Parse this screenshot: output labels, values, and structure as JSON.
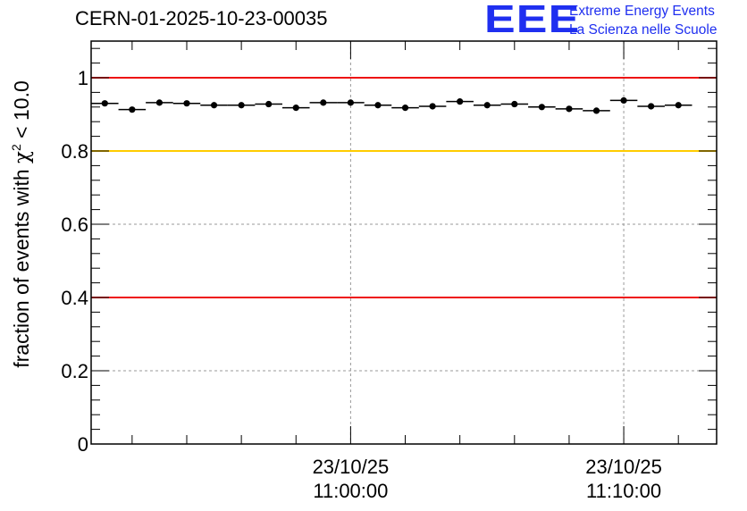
{
  "header": {
    "run_title": "CERN-01-2025-10-23-00035",
    "logo_mark": "EEE",
    "logo_line1": "Extreme Energy Events",
    "logo_line2": "La Scienza nelle Scuole"
  },
  "chart_data": {
    "type": "scatter",
    "title": "CERN-01-2025-10-23-00035",
    "ylabel_main": "fraction of events with ",
    "ylabel_symbol": "χ",
    "ylabel_sup": "2",
    "ylabel_tail": " < 10.0",
    "xlabel": "",
    "xlim_minutes": [
      50.5,
      73.4
    ],
    "ylim": [
      0,
      1.1
    ],
    "y_ticks": [
      {
        "value": 0,
        "label": "0"
      },
      {
        "value": 0.2,
        "label": "0.2"
      },
      {
        "value": 0.4,
        "label": "0.4"
      },
      {
        "value": 0.6,
        "label": "0.6"
      },
      {
        "value": 0.8,
        "label": "0.8"
      },
      {
        "value": 1,
        "label": "1"
      }
    ],
    "x_ticks": [
      {
        "minute": 60,
        "date": "23/10/25",
        "time": "11:00:00"
      },
      {
        "minute": 70,
        "date": "23/10/25",
        "time": "11:10:00"
      }
    ],
    "reference_lines": [
      {
        "y": 1.0,
        "color": "#ee1111"
      },
      {
        "y": 0.8,
        "color": "#ffcc00"
      },
      {
        "y": 0.4,
        "color": "#ee1111"
      }
    ],
    "points": [
      {
        "x": 51.0,
        "y": 0.93
      },
      {
        "x": 52.0,
        "y": 0.913
      },
      {
        "x": 53.0,
        "y": 0.932
      },
      {
        "x": 54.0,
        "y": 0.93
      },
      {
        "x": 55.0,
        "y": 0.925
      },
      {
        "x": 56.0,
        "y": 0.925
      },
      {
        "x": 57.0,
        "y": 0.928
      },
      {
        "x": 58.0,
        "y": 0.918
      },
      {
        "x": 59.0,
        "y": 0.932
      },
      {
        "x": 60.0,
        "y": 0.932
      },
      {
        "x": 61.0,
        "y": 0.925
      },
      {
        "x": 62.0,
        "y": 0.918
      },
      {
        "x": 63.0,
        "y": 0.922
      },
      {
        "x": 64.0,
        "y": 0.935
      },
      {
        "x": 65.0,
        "y": 0.925
      },
      {
        "x": 66.0,
        "y": 0.928
      },
      {
        "x": 67.0,
        "y": 0.92
      },
      {
        "x": 68.0,
        "y": 0.915
      },
      {
        "x": 69.0,
        "y": 0.91
      },
      {
        "x": 70.0,
        "y": 0.938
      },
      {
        "x": 71.0,
        "y": 0.922
      },
      {
        "x": 72.0,
        "y": 0.925
      }
    ],
    "x_error_half_width_minutes": 0.5,
    "grid": true,
    "colors": {
      "points": "#000000",
      "grid": "#9a9a9a",
      "frame": "#000000"
    }
  }
}
